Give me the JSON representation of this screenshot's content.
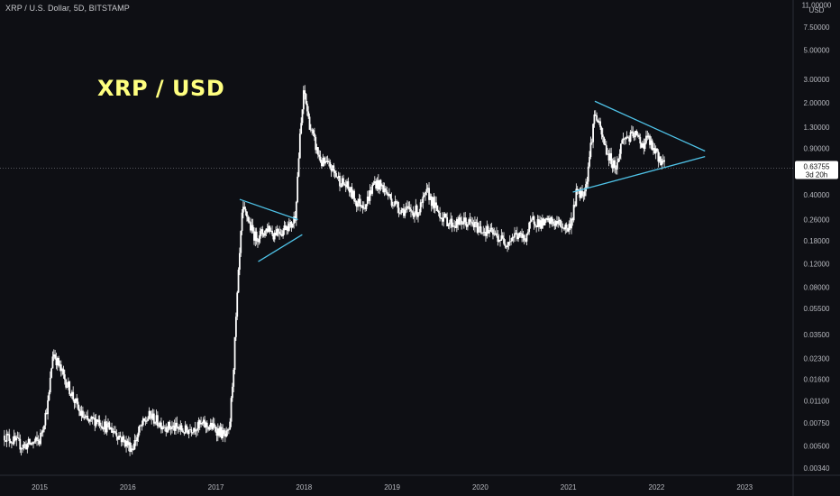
{
  "header": {
    "symbol_line": "XRP / U.S. Dollar, 5D, BITSTAMP"
  },
  "annotation_title": "XRP / USD",
  "colors": {
    "background": "#0e0f14",
    "candles": "#ffffff",
    "trendlines": "#4fc3e8",
    "title": "#ffff80"
  },
  "chart_data": {
    "type": "line",
    "scale": "log",
    "title": "XRP / USD",
    "xlabel": "",
    "ylabel": "",
    "y_unit": "USD",
    "y_ticks": [
      "11.00000",
      "7.50000",
      "5.00000",
      "3.00000",
      "2.00000",
      "1.30000",
      "0.90000",
      "0.40000",
      "0.26000",
      "0.18000",
      "0.12000",
      "0.08000",
      "0.05500",
      "0.03500",
      "0.02300",
      "0.01600",
      "0.01100",
      "0.00750",
      "0.00500",
      "0.00340"
    ],
    "x_ticks": [
      "2015",
      "2016",
      "2017",
      "2018",
      "2019",
      "2020",
      "2021",
      "2022",
      "2023"
    ],
    "current_price": "0.63755",
    "countdown": "3d 20h",
    "series": [
      {
        "values_x": [
          2014.6,
          2014.7,
          2014.8,
          2014.9,
          2015.0,
          2015.1,
          2015.15,
          2015.25,
          2015.35,
          2015.45,
          2015.55,
          2015.65,
          2015.75,
          2015.85,
          2015.95,
          2016.05,
          2016.15,
          2016.25,
          2016.35,
          2016.45,
          2016.55,
          2016.65,
          2016.75,
          2016.85,
          2016.95,
          2017.05,
          2017.1,
          2017.15,
          2017.2,
          2017.25,
          2017.3,
          2017.35,
          2017.4,
          2017.45,
          2017.5,
          2017.55,
          2017.6,
          2017.65,
          2017.7,
          2017.75,
          2017.8,
          2017.85,
          2017.9,
          2017.95,
          2018.0,
          2018.05,
          2018.1,
          2018.15,
          2018.2,
          2018.3,
          2018.4,
          2018.5,
          2018.6,
          2018.7,
          2018.8,
          2018.9,
          2019.0,
          2019.1,
          2019.2,
          2019.3,
          2019.4,
          2019.5,
          2019.6,
          2019.7,
          2019.8,
          2019.9,
          2020.0,
          2020.1,
          2020.2,
          2020.3,
          2020.4,
          2020.5,
          2020.6,
          2020.7,
          2020.8,
          2020.9,
          2021.0,
          2021.05,
          2021.1,
          2021.15,
          2021.2,
          2021.25,
          2021.3,
          2021.35,
          2021.4,
          2021.45,
          2021.5,
          2021.55,
          2021.6,
          2021.65,
          2021.7,
          2021.75,
          2021.8,
          2021.85,
          2021.9,
          2021.95,
          2022.0,
          2022.05,
          2022.1
        ],
        "values_y": [
          0.006,
          0.0055,
          0.005,
          0.0052,
          0.0055,
          0.011,
          0.026,
          0.018,
          0.013,
          0.009,
          0.0075,
          0.008,
          0.007,
          0.0065,
          0.0055,
          0.0048,
          0.007,
          0.0085,
          0.0075,
          0.007,
          0.0068,
          0.0065,
          0.007,
          0.0072,
          0.007,
          0.0064,
          0.0058,
          0.0062,
          0.02,
          0.085,
          0.3,
          0.28,
          0.22,
          0.19,
          0.2,
          0.21,
          0.23,
          0.2,
          0.22,
          0.21,
          0.24,
          0.23,
          0.28,
          1.0,
          2.5,
          1.5,
          1.1,
          0.85,
          0.7,
          0.65,
          0.52,
          0.45,
          0.35,
          0.34,
          0.5,
          0.45,
          0.36,
          0.31,
          0.3,
          0.3,
          0.42,
          0.31,
          0.26,
          0.24,
          0.25,
          0.24,
          0.22,
          0.21,
          0.19,
          0.175,
          0.2,
          0.185,
          0.26,
          0.24,
          0.25,
          0.24,
          0.22,
          0.28,
          0.45,
          0.4,
          0.48,
          0.9,
          1.7,
          1.3,
          1.0,
          0.8,
          0.7,
          0.65,
          1.0,
          1.1,
          1.08,
          1.15,
          1.05,
          0.95,
          1.1,
          0.9,
          0.8,
          0.74,
          0.64
        ]
      }
    ],
    "ylim": [
      0.003,
      12.0
    ]
  }
}
